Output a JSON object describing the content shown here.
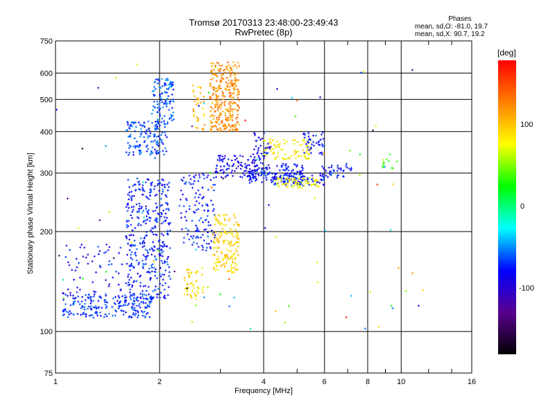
{
  "header": {
    "title_line1": "Tromsø 20170313 23:48:00-23:49:43",
    "title_line2": "RwPretec (8p)"
  },
  "stats": {
    "heading": "Phases",
    "line1": "mean, sd,O: -81.0, 19.7",
    "line2": "mean, sd,X:  90.7, 19.2"
  },
  "colorbar": {
    "unit_label": "[deg]",
    "ticks": [
      "100",
      "0",
      "-100"
    ],
    "tick_values": [
      100,
      0,
      -100
    ],
    "range": [
      -180,
      180
    ],
    "colors": [
      "#000000",
      "#5a0090",
      "#0000ff",
      "#00ffff",
      "#00ff00",
      "#ffff00",
      "#ff8000",
      "#ff0000"
    ]
  },
  "chart_data": {
    "type": "scatter",
    "title": "Tromsø 20170313 23:48:00-23:49:43",
    "subtitle": "RwPretec (8p)",
    "xlabel": "Frequency [MHz]",
    "ylabel": "Stationary phase Virtual Height [km]",
    "x_scale": "log",
    "y_scale": "log",
    "xlim": [
      1,
      16
    ],
    "ylim": [
      75,
      750
    ],
    "x_ticks": [
      1,
      2,
      4,
      6,
      8,
      10,
      16
    ],
    "y_ticks": [
      75,
      100,
      200,
      300,
      400,
      500,
      600,
      750
    ],
    "grid": true,
    "color_encodes": "phase [deg]",
    "clusters": [
      {
        "x_range": [
          1.05,
          1.9
        ],
        "y_range": [
          110,
          130
        ],
        "phase": -90,
        "n": 220
      },
      {
        "x_range": [
          1.05,
          1.6
        ],
        "y_range": [
          130,
          190
        ],
        "phase": -105,
        "n": 55
      },
      {
        "x_range": [
          1.6,
          2.15
        ],
        "y_range": [
          125,
          290
        ],
        "phase": -95,
        "n": 380
      },
      {
        "x_range": [
          1.6,
          2.1
        ],
        "y_range": [
          340,
          430
        ],
        "phase": -85,
        "n": 140
      },
      {
        "x_range": [
          1.9,
          2.2
        ],
        "y_range": [
          420,
          580
        ],
        "phase": -80,
        "n": 110
      },
      {
        "x_range": [
          2.3,
          2.9
        ],
        "y_range": [
          175,
          300
        ],
        "phase": -95,
        "n": 130
      },
      {
        "x_range": [
          2.35,
          2.7
        ],
        "y_range": [
          125,
          155
        ],
        "phase": 100,
        "n": 50
      },
      {
        "x_range": [
          2.85,
          3.4
        ],
        "y_range": [
          150,
          225
        ],
        "phase": 105,
        "n": 160
      },
      {
        "x_range": [
          2.8,
          3.4
        ],
        "y_range": [
          400,
          650
        ],
        "phase": 135,
        "n": 300
      },
      {
        "x_range": [
          2.5,
          2.7
        ],
        "y_range": [
          400,
          560
        ],
        "phase": 115,
        "n": 35
      },
      {
        "x_range": [
          2.9,
          3.9
        ],
        "y_range": [
          290,
          340
        ],
        "phase": -110,
        "n": 100
      },
      {
        "x_range": [
          3.6,
          5.2
        ],
        "y_range": [
          280,
          320
        ],
        "phase": -100,
        "n": 130
      },
      {
        "x_range": [
          4.2,
          6.0
        ],
        "y_range": [
          275,
          300
        ],
        "phase": -95,
        "n": 90
      },
      {
        "x_range": [
          4.3,
          5.8
        ],
        "y_range": [
          270,
          290
        ],
        "phase": 85,
        "n": 70
      },
      {
        "x_range": [
          4.0,
          5.5
        ],
        "y_range": [
          330,
          380
        ],
        "phase": 95,
        "n": 90
      },
      {
        "x_range": [
          3.7,
          4.2
        ],
        "y_range": [
          320,
          400
        ],
        "phase": -105,
        "n": 40
      },
      {
        "x_range": [
          5.2,
          6.0
        ],
        "y_range": [
          340,
          400
        ],
        "phase": -100,
        "n": 40
      },
      {
        "x_range": [
          5.8,
          7.2
        ],
        "y_range": [
          290,
          320
        ],
        "phase": -100,
        "n": 40
      },
      {
        "x_range": [
          8.8,
          9.8
        ],
        "y_range": [
          310,
          345
        ],
        "phase": 20,
        "n": 12
      },
      {
        "x_range": [
          1.0,
          12.0
        ],
        "y_range": [
          100,
          650
        ],
        "phase": 0,
        "n": 100,
        "sparse": true
      }
    ]
  }
}
